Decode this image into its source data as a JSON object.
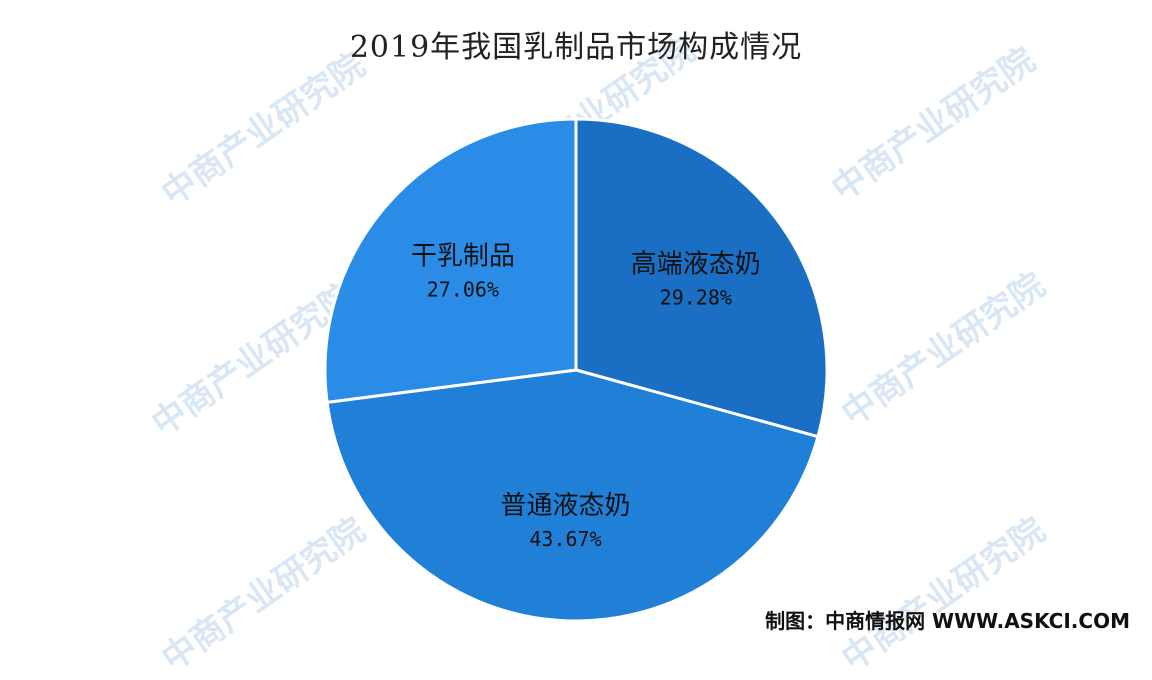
{
  "watermark_text": "中商产业研究院",
  "source": "制图：中商情报网 WWW.ASKCI.COM",
  "chart_data": {
    "type": "pie",
    "title": "2019年我国乳制品市场构成情况",
    "categories": [
      "高端液态奶",
      "普通液态奶",
      "干乳制品"
    ],
    "values": [
      29.28,
      43.67,
      27.06
    ],
    "value_labels": [
      "29.28%",
      "43.67%",
      "27.06%"
    ],
    "colors": [
      "#1a6fc4",
      "#2080d8",
      "#2a8ce6"
    ],
    "start_angle_deg": 0,
    "direction": "clockwise"
  }
}
